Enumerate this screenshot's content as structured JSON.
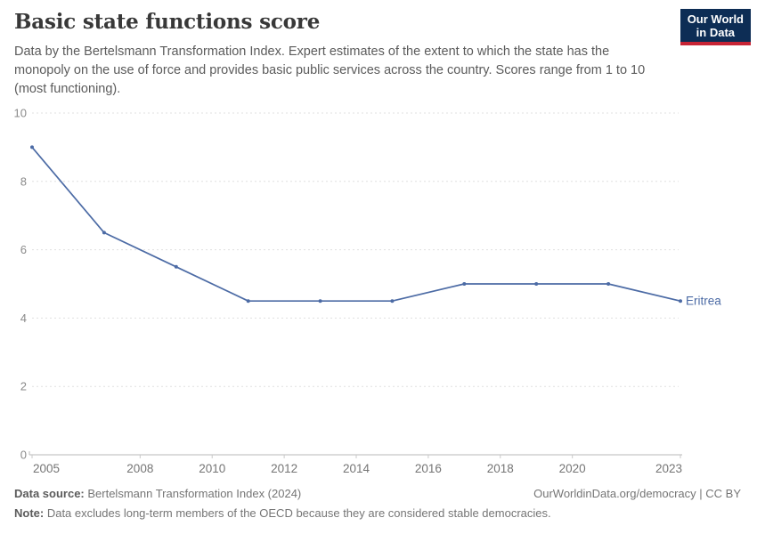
{
  "header": {
    "title": "Basic state functions score",
    "subtitle": "Data by the Bertelsmann Transformation Index. Expert estimates of the extent to which the state has the monopoly on the use of force and provides basic public services across the country. Scores range from 1 to 10 (most functioning).",
    "logo": {
      "line1": "Our World",
      "line2": "in Data",
      "bg_color": "#0d2d55",
      "accent_color": "#c72435"
    }
  },
  "chart_data": {
    "type": "line",
    "title": "Basic state functions score",
    "xlabel": "",
    "ylabel": "",
    "x": [
      2005,
      2007,
      2009,
      2011,
      2013,
      2015,
      2017,
      2019,
      2021,
      2023
    ],
    "series": [
      {
        "name": "Eritrea",
        "values": [
          9,
          6.5,
          5.5,
          4.5,
          4.5,
          4.5,
          5,
          5,
          5,
          4.5
        ]
      }
    ],
    "end_label": "Eritrea",
    "xlim": [
      2005,
      2023
    ],
    "ylim": [
      0,
      10
    ],
    "xticks": [
      2005,
      2008,
      2010,
      2012,
      2014,
      2016,
      2018,
      2020,
      2023
    ],
    "yticks": [
      0,
      2,
      4,
      6,
      8,
      10
    ],
    "grid": "horizontal-dashed",
    "legend_position": "end-of-line",
    "colors": {
      "line": "#4c6ba5",
      "gridline": "#e0e0e0",
      "axis_line": "#b8b8b8",
      "tick_mark": "#c9c9c9",
      "tick_label": "#8a8a8a"
    }
  },
  "footer": {
    "source_label": "Data source:",
    "source_value": " Bertelsmann Transformation Index (2024)",
    "link": "OurWorldinData.org/democracy | CC BY",
    "note_label": "Note:",
    "note_value": " Data excludes long-term members of the OECD because they are considered stable democracies."
  }
}
